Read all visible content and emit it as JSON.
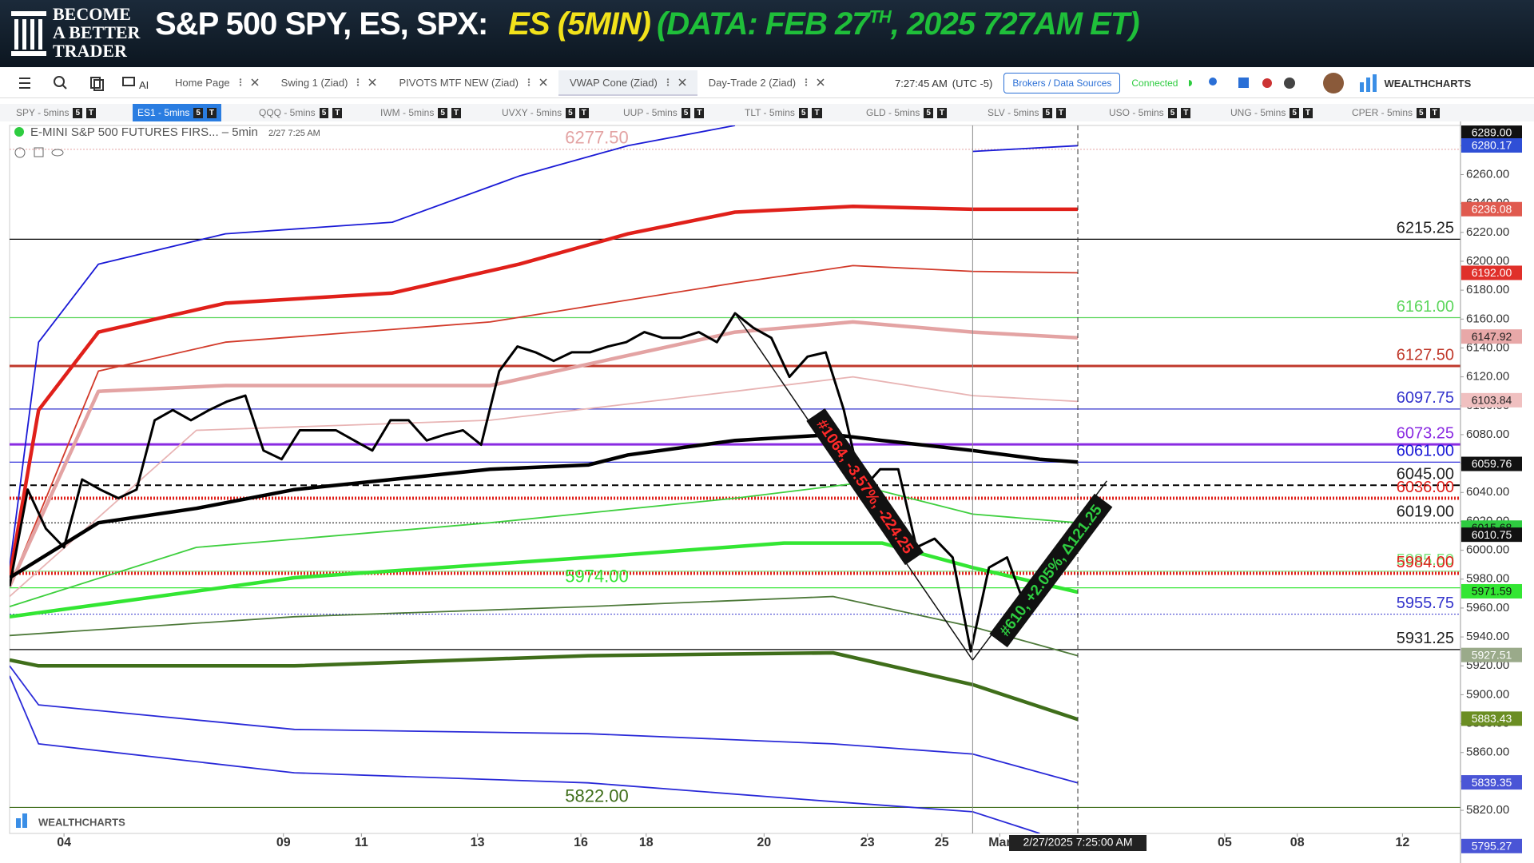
{
  "header": {
    "logo": [
      "BECOME",
      "A BETTER",
      "TRADER"
    ],
    "title": "S&P 500 SPY, ES, SPX:",
    "symbol": "ES (5MIN)",
    "data_note": [
      "(DATA: FEB 27",
      "TH",
      ", 2025 727AM ET)"
    ]
  },
  "toolbar": {
    "ai": "AI",
    "tabs": [
      "Home Page",
      "Swing 1 (Ziad)",
      "PIVOTS MTF NEW (Ziad)",
      "VWAP Cone (Ziad)",
      "Day-Trade 2 (Ziad)"
    ],
    "active_tab": 3,
    "time": "7:27:45 AM",
    "timezone": "(UTC -5)",
    "brokers": "Brokers / Data Sources",
    "status": "Connected",
    "brand": "WEALTHCHARTS"
  },
  "symbols": {
    "tabs": [
      "SPY - 5mins",
      "ES1 - 5mins",
      "QQQ - 5mins",
      "IWM - 5mins",
      "UVXY - 5mins",
      "UUP - 5mins",
      "TLT - 5mins",
      "GLD - 5mins",
      "SLV - 5mins",
      "USO - 5mins",
      "UNG - 5mins",
      "CPER - 5mins"
    ],
    "active": 1,
    "badges": [
      "5",
      "T"
    ]
  },
  "chart_data": {
    "type": "line",
    "title": "E-MINI S&P 500 FUTURES FIRS... – 5min",
    "subtitle": "2/27 7:25 AM",
    "xlim": [
      0,
      80
    ],
    "xticks": [
      {
        "value": 3,
        "label": "04"
      },
      {
        "value": 15.1,
        "label": "09"
      },
      {
        "value": 19.4,
        "label": "11"
      },
      {
        "value": 25.8,
        "label": "13"
      },
      {
        "value": 31.5,
        "label": "16"
      },
      {
        "value": 35.1,
        "label": "18"
      },
      {
        "value": 41.6,
        "label": "20"
      },
      {
        "value": 47.3,
        "label": "23"
      },
      {
        "value": 51.4,
        "label": "25"
      },
      {
        "value": 54.6,
        "label": "Mar"
      },
      {
        "value": 67,
        "label": "05"
      },
      {
        "value": 71,
        "label": "08"
      },
      {
        "value": 76.8,
        "label": "12"
      }
    ],
    "ylim": [
      5804,
      6294
    ],
    "yticks": [
      {
        "value": 5820,
        "label": "5820.00"
      },
      {
        "value": 5840,
        "label": "5840.00"
      },
      {
        "value": 5860,
        "label": "5860.00"
      },
      {
        "value": 5880,
        "label": "5880.00"
      },
      {
        "value": 5900,
        "label": "5900.00"
      },
      {
        "value": 5920,
        "label": "5920.00"
      },
      {
        "value": 5940,
        "label": "5940.00"
      },
      {
        "value": 5960,
        "label": "5960.00"
      },
      {
        "value": 5980,
        "label": "5980.00"
      },
      {
        "value": 6000,
        "label": "6000.00"
      },
      {
        "value": 6020,
        "label": "6020.00"
      },
      {
        "value": 6040,
        "label": "6040.00"
      },
      {
        "value": 6060,
        "label": "6060.00"
      },
      {
        "value": 6080,
        "label": "6080.00"
      },
      {
        "value": 6100,
        "label": "6100.00"
      },
      {
        "value": 6120,
        "label": "6120.00"
      },
      {
        "value": 6140,
        "label": "6140.00"
      },
      {
        "value": 6160,
        "label": "6160.00"
      },
      {
        "value": 6180,
        "label": "6180.00"
      },
      {
        "value": 6200,
        "label": "6200.00"
      },
      {
        "value": 6220,
        "label": "6220.00"
      },
      {
        "value": 6240,
        "label": "6240.00"
      },
      {
        "value": 6260,
        "label": "6260.00"
      },
      {
        "value": 6280,
        "label": "6280.00"
      }
    ],
    "grid": false,
    "series": [
      {
        "color": "#1a1ad6",
        "style": "thin",
        "x": [
          0,
          1.6,
          4.9,
          11.9,
          21.1,
          28.1,
          34.1,
          40,
          46,
          53.1,
          58.9
        ],
        "values": [
          5988,
          6144,
          6198,
          6219,
          6227,
          6259,
          6280,
          6294,
          null,
          6276,
          6280
        ]
      },
      {
        "color": "#e0201a",
        "style": "thick",
        "x": [
          0,
          1.6,
          4.9,
          11.9,
          21.1,
          28.1,
          34.1,
          40,
          46.5,
          53.1,
          58.9
        ],
        "values": [
          5981,
          6097,
          6151,
          6171,
          6178,
          6198,
          6219,
          6234,
          6238,
          6236,
          6236
        ]
      },
      {
        "color": "#d23a2a",
        "style": "thin",
        "x": [
          0,
          4.9,
          11.9,
          26.5,
          40,
          46.5,
          53.1,
          58.9
        ],
        "values": [
          5975,
          6124,
          6144,
          6158,
          6185,
          6197,
          6193,
          6192
        ]
      },
      {
        "color": "#e3a3a3",
        "style": "thick",
        "x": [
          0,
          4.9,
          11.9,
          26.5,
          40,
          46.5,
          53.1,
          58.9
        ],
        "values": [
          5975,
          6110,
          6114,
          6114,
          6151,
          6158,
          6151,
          6147
        ]
      },
      {
        "color": "#e8b4b4",
        "style": "thin",
        "x": [
          0,
          10.3,
          26.5,
          40,
          46.5,
          53.1,
          58.9
        ],
        "values": [
          5968,
          6083,
          6090,
          6110,
          6120,
          6107,
          6103
        ]
      },
      {
        "color": "#000000",
        "style": "thick",
        "x": [
          0,
          4.9,
          10.3,
          15.7,
          21.1,
          26.5,
          31.9,
          34.1,
          40,
          45.4,
          48.1,
          53.1,
          56.8,
          58.9
        ],
        "values": [
          5981,
          6019,
          6029,
          6042,
          6049,
          6056,
          6059,
          6066,
          6076,
          6080,
          6076,
          6069,
          6063,
          6061
        ]
      },
      {
        "color": "#3ecf3e",
        "style": "thin",
        "x": [
          0,
          10.3,
          26.5,
          40,
          46.5,
          53.1,
          58.9
        ],
        "values": [
          5961,
          6002,
          6019,
          6036,
          6046,
          6025,
          6019
        ]
      },
      {
        "color": "#33e633",
        "style": "thick",
        "x": [
          0,
          15.7,
          31.9,
          42.7,
          48.1,
          53.1,
          58.9
        ],
        "values": [
          5954,
          5981,
          5995,
          6005,
          6005,
          5988,
          5971
        ]
      },
      {
        "color": "#4e7a3a",
        "style": "thin",
        "x": [
          0,
          15.7,
          31.9,
          45.4,
          53.1,
          58.9
        ],
        "values": [
          5941,
          5954,
          5961,
          5968,
          5947,
          5927
        ]
      },
      {
        "color": "#3f6e1a",
        "style": "thick",
        "x": [
          0,
          1.6,
          15.7,
          31.9,
          45.4,
          53.1,
          58.9
        ],
        "values": [
          5924,
          5920,
          5920,
          5927,
          5929,
          5907,
          5883
        ]
      },
      {
        "color": "#2a2ad8",
        "style": "thin",
        "x": [
          0,
          1.6,
          15.7,
          31.9,
          45.4,
          53.1,
          58.9
        ],
        "values": [
          5920,
          5893,
          5876,
          5873,
          5866,
          5859,
          5839
        ]
      },
      {
        "color": "#2a2ad8",
        "style": "thin",
        "x": [
          0,
          1.6,
          15.7,
          31.9,
          45.4,
          53.1,
          56.8
        ],
        "values": [
          5913,
          5866,
          5846,
          5839,
          5826,
          5819,
          5804
        ]
      },
      {
        "color": "#000000",
        "style": "price",
        "x": [
          0,
          1,
          2,
          3,
          4,
          5,
          6,
          7,
          8,
          9,
          10,
          11,
          12,
          13,
          14,
          15,
          16,
          17,
          18,
          19,
          20,
          21,
          22,
          23,
          24,
          25,
          26,
          27,
          28,
          29,
          30,
          31,
          32,
          33,
          34,
          35,
          36,
          37,
          38,
          39,
          40,
          41,
          42,
          43,
          44,
          45,
          46,
          47,
          48,
          49,
          50,
          51,
          52,
          53,
          54,
          55,
          56,
          57,
          58
        ],
        "values": [
          5975,
          6042,
          6015,
          6002,
          6049,
          6042,
          6036,
          6042,
          6090,
          6097,
          6090,
          6097,
          6103,
          6107,
          6069,
          6063,
          6083,
          6083,
          6083,
          6076,
          6069,
          6090,
          6090,
          6076,
          6080,
          6083,
          6073,
          6124,
          6141,
          6137,
          6131,
          6137,
          6137,
          6141,
          6144,
          6151,
          6147,
          6147,
          6151,
          6144,
          6164,
          6154,
          6147,
          6120,
          6134,
          6137,
          6097,
          6042,
          6056,
          6056,
          6002,
          6008,
          5995,
          5930,
          5988,
          5995,
          5961,
          5981,
          6002
        ]
      }
    ],
    "levels": [
      {
        "value": 6215.25,
        "label": "6215.25",
        "color": "#000000",
        "style": "solid"
      },
      {
        "value": 6161,
        "label": "6161.00",
        "color": "#5cd65c",
        "style": "solid"
      },
      {
        "value": 6127.5,
        "label": "6127.50",
        "color": "#c0392b",
        "style": "double"
      },
      {
        "value": 6097.75,
        "label": "6097.75",
        "color": "#3333cc",
        "style": "solid"
      },
      {
        "value": 6073.25,
        "label": "6073.25",
        "color": "#8a2be2",
        "style": "thick"
      },
      {
        "value": 6061,
        "label": "6061.00",
        "color": "#1a1ad6",
        "style": "solid"
      },
      {
        "value": 6045,
        "label": "6045.00",
        "color": "#000000",
        "style": "dashed"
      },
      {
        "value": 6036,
        "label": "6036.00",
        "color": "#e0201a",
        "style": "dotted-thick"
      },
      {
        "value": 6019,
        "label": "6019.00",
        "color": "#000000",
        "style": "dotted"
      },
      {
        "value": 5985.5,
        "label": "5985.50",
        "color": "#7de37d",
        "style": "solid"
      },
      {
        "value": 5984,
        "label": "5984.00",
        "color": "#e0201a",
        "style": "dotted-thick"
      },
      {
        "value": 5955.75,
        "label": "5955.75",
        "color": "#3333cc",
        "style": "dotted"
      },
      {
        "value": 5931.25,
        "label": "5931.25",
        "color": "#000000",
        "style": "solid"
      }
    ],
    "mid_levels": [
      {
        "value": 6277.5,
        "label": "6277.50",
        "color": "#e3a3a3",
        "style": "dotted"
      },
      {
        "value": 5974,
        "label": "5974.00",
        "color": "#33e633",
        "style": "solid"
      },
      {
        "value": 5822,
        "label": "5822.00",
        "color": "#3f6e1a",
        "style": "solid"
      }
    ],
    "price_tags": [
      {
        "value": 6289,
        "label": "6289.00",
        "color": "#111111",
        "text_color": "#ffffff"
      },
      {
        "value": 6280.17,
        "label": "6280.17",
        "color": "#2f4fd6",
        "text_color": "#ffffff"
      },
      {
        "value": 6236.08,
        "label": "6236.08",
        "color": "#e05a4f",
        "text_color": "#ffffff"
      },
      {
        "value": 6192,
        "label": "6192.00",
        "color": "#e0302a",
        "text_color": "#ffffff"
      },
      {
        "value": 6147.92,
        "label": "6147.92",
        "color": "#e8a8a8",
        "text_color": "#222222"
      },
      {
        "value": 6103.84,
        "label": "6103.84",
        "color": "#f0c0c0",
        "text_color": "#222222"
      },
      {
        "value": 6059.76,
        "label": "6059.76",
        "color": "#111111",
        "text_color": "#ffffff"
      },
      {
        "value": 6015.68,
        "label": "6015.68",
        "color": "#2ecc40",
        "text_color": "#111111"
      },
      {
        "value": 6010.75,
        "label": "6010.75",
        "color": "#111111",
        "text_color": "#ffffff"
      },
      {
        "value": 5971.59,
        "label": "5971.59",
        "color": "#33e633",
        "text_color": "#111111"
      },
      {
        "value": 5927.51,
        "label": "5927.51",
        "color": "#9aaa8a",
        "text_color": "#ffffff"
      },
      {
        "value": 5883.43,
        "label": "5883.43",
        "color": "#6b8e23",
        "text_color": "#ffffff"
      },
      {
        "value": 5839.35,
        "label": "5839.35",
        "color": "#4a55d6",
        "text_color": "#ffffff"
      },
      {
        "value": 5795.27,
        "label": "5795.27",
        "color": "#4a55d6",
        "text_color": "#ffffff"
      }
    ],
    "annotations": [
      {
        "text": "#1064, -3.57%, -224.25",
        "color": "#ff2a2a",
        "x": [
          40,
          53.1
        ],
        "values": [
          6164,
          5924
        ]
      },
      {
        "text": "#610, +2.05%, Δ121.25",
        "color": "#2ecc40",
        "x": [
          53.1,
          60.5
        ],
        "values": [
          5924,
          6048
        ]
      }
    ],
    "session_break": 53.1,
    "crosshair": {
      "x": 58.9,
      "label": "2/27/2025 7:25:00 AM"
    }
  }
}
